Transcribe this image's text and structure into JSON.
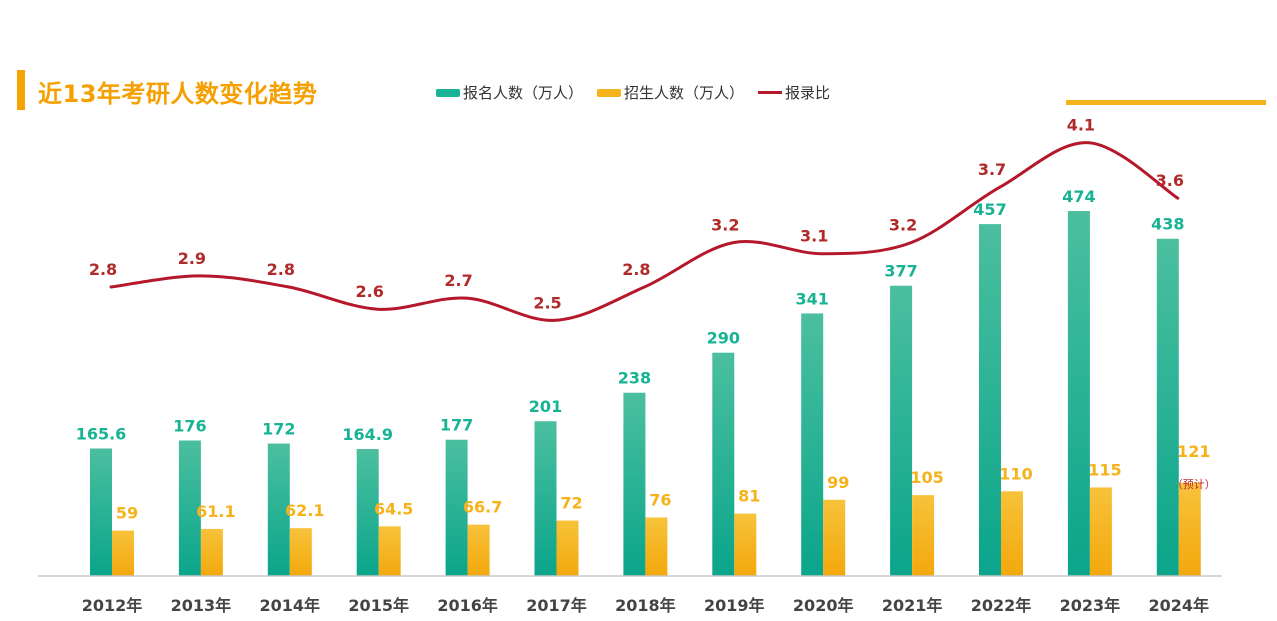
{
  "title": "近13年考研人数变化趋势",
  "legend": {
    "applicants": "报名人数（万人）",
    "admissions": "招生人数（万人）",
    "ratio": "报录比"
  },
  "colors": {
    "applicants": "#17b394",
    "admissions": "#f6b21a",
    "ratio": "#b5182b",
    "title": "#f5a000"
  },
  "chart_data": {
    "type": "bar",
    "title": "近13年考研人数变化趋势",
    "categories": [
      "2012年",
      "2013年",
      "2014年",
      "2015年",
      "2016年",
      "2017年",
      "2018年",
      "2019年",
      "2020年",
      "2021年",
      "2022年",
      "2023年",
      "2024年"
    ],
    "series": [
      {
        "name": "报名人数（万人）",
        "type": "bar",
        "values": [
          165.6,
          176,
          172,
          164.9,
          177,
          201,
          238,
          290,
          341,
          377,
          457,
          474,
          438
        ],
        "labels": [
          "165.6",
          "176",
          "172",
          "164.9",
          "177",
          "201",
          "238",
          "290",
          "341",
          "377",
          "457",
          "474",
          "438"
        ]
      },
      {
        "name": "招生人数（万人）",
        "type": "bar",
        "values": [
          59,
          61.1,
          62.1,
          64.5,
          66.7,
          72,
          76,
          81,
          99,
          105,
          110,
          115,
          121
        ],
        "labels": [
          "59",
          "61.1",
          "62.1",
          "64.5",
          "66.7",
          "72",
          "76",
          "81",
          "99",
          "105",
          "110",
          "115",
          "121"
        ]
      },
      {
        "name": "报录比",
        "type": "line",
        "values": [
          2.8,
          2.9,
          2.8,
          2.6,
          2.7,
          2.5,
          2.8,
          3.2,
          3.1,
          3.2,
          3.7,
          4.1,
          3.6
        ],
        "labels": [
          "2.8",
          "2.9",
          "2.8",
          "2.6",
          "2.7",
          "2.5",
          "2.8",
          "3.2",
          "3.1",
          "3.2",
          "3.7",
          "4.1",
          "3.6"
        ]
      }
    ],
    "annotations": [
      {
        "category": "2024年",
        "series": "招生人数（万人）",
        "text": "（预计）"
      }
    ],
    "grid": false,
    "legend_position": "top"
  }
}
